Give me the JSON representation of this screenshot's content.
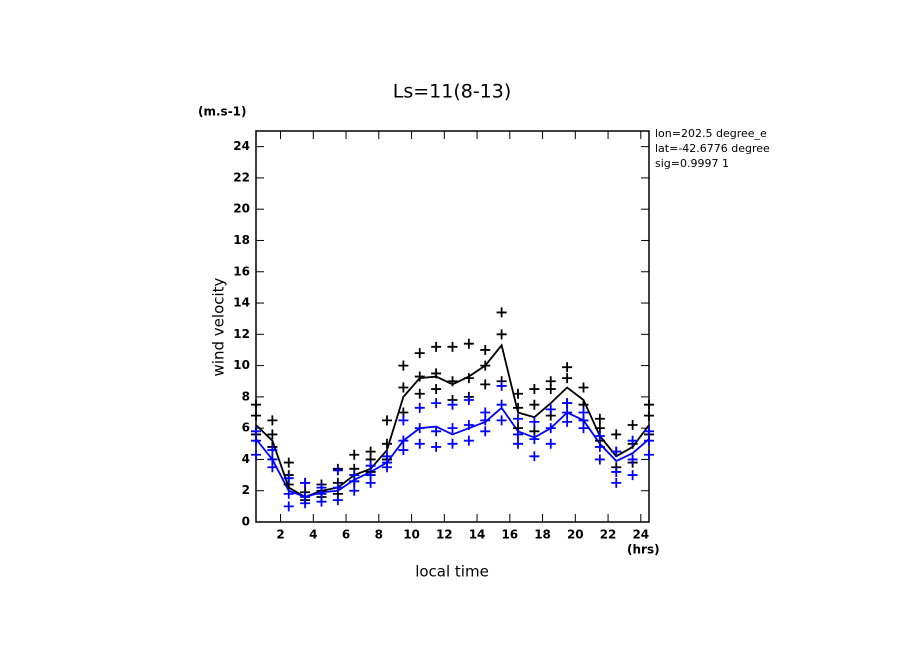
{
  "chart_data": {
    "type": "line",
    "title": "Ls=11(8-13)",
    "y_unit": "(m.s-1)",
    "ylabel": "wind velocity",
    "xlabel": "local time",
    "x_unit": "(hrs)",
    "annotations": [
      "lon=202.5 degree_e",
      "lat=-42.6776 degree",
      "sig=0.9997 1"
    ],
    "x": [
      0.5,
      1.5,
      2.5,
      3.5,
      4.5,
      5.5,
      6.5,
      7.5,
      8.5,
      9.5,
      10.5,
      11.5,
      12.5,
      13.5,
      14.5,
      15.5,
      16.5,
      17.5,
      18.5,
      19.5,
      20.5,
      21.5,
      22.5,
      23.5,
      24.5
    ],
    "xlim": [
      0.5,
      24.5
    ],
    "xticks": [
      2,
      4,
      6,
      8,
      10,
      12,
      14,
      16,
      18,
      20,
      22,
      24
    ],
    "ylim": [
      0,
      25
    ],
    "yticks": [
      0,
      2,
      4,
      6,
      8,
      10,
      12,
      14,
      16,
      18,
      20,
      22,
      24
    ],
    "series": [
      {
        "color": "#000000",
        "marker": "line",
        "values": [
          6.2,
          5.2,
          2.2,
          1.6,
          2.0,
          2.2,
          3.0,
          3.4,
          4.6,
          8.0,
          9.2,
          9.3,
          8.8,
          9.3,
          10.0,
          11.3,
          7.0,
          6.7,
          7.6,
          8.6,
          7.8,
          5.5,
          4.2,
          4.8,
          6.2
        ]
      },
      {
        "color": "#0000ff",
        "marker": "line",
        "values": [
          5.3,
          4.0,
          2.0,
          1.6,
          1.9,
          2.0,
          2.7,
          3.2,
          3.8,
          5.2,
          6.0,
          6.1,
          5.6,
          6.0,
          6.4,
          7.3,
          5.8,
          5.4,
          6.0,
          7.0,
          6.5,
          5.0,
          3.9,
          4.4,
          5.3
        ]
      },
      {
        "color": "#000000",
        "marker": "plus",
        "values": [
          7.5,
          6.5,
          3.8,
          2.5,
          2.4,
          3.4,
          4.3,
          4.5,
          6.5,
          10.0,
          10.8,
          11.2,
          11.2,
          11.4,
          11.0,
          13.4,
          8.2,
          8.5,
          9.0,
          9.9,
          8.6,
          6.6,
          5.6,
          6.2,
          7.5
        ]
      },
      {
        "color": "#000000",
        "marker": "plus",
        "values": [
          6.8,
          5.6,
          3.0,
          1.9,
          2.0,
          2.5,
          3.4,
          4.0,
          5.0,
          8.6,
          9.3,
          9.5,
          9.0,
          9.2,
          10.0,
          12.0,
          7.3,
          7.5,
          8.5,
          9.2,
          7.5,
          6.0,
          4.5,
          5.0,
          6.8
        ]
      },
      {
        "color": "#000000",
        "marker": "plus",
        "values": [
          5.6,
          4.8,
          2.4,
          1.4,
          1.6,
          1.8,
          2.6,
          3.2,
          4.0,
          7.0,
          8.2,
          8.5,
          7.8,
          8.0,
          8.8,
          9.0,
          6.0,
          5.8,
          6.8,
          7.6,
          6.5,
          5.2,
          3.5,
          3.8,
          5.6
        ]
      },
      {
        "color": "#0000ff",
        "marker": "plus",
        "values": [
          5.8,
          4.6,
          2.8,
          2.5,
          2.2,
          3.3,
          3.0,
          3.6,
          4.2,
          6.5,
          7.3,
          7.6,
          7.5,
          7.8,
          7.0,
          8.7,
          6.6,
          6.4,
          7.2,
          7.6,
          7.0,
          5.5,
          4.5,
          5.2,
          5.8
        ]
      },
      {
        "color": "#0000ff",
        "marker": "plus",
        "values": [
          5.2,
          4.0,
          1.8,
          1.6,
          1.8,
          2.2,
          2.6,
          3.0,
          3.8,
          5.2,
          6.0,
          5.8,
          6.0,
          6.2,
          6.5,
          7.5,
          5.6,
          5.3,
          6.0,
          7.0,
          6.5,
          4.8,
          3.2,
          4.0,
          5.2
        ]
      },
      {
        "color": "#0000ff",
        "marker": "plus",
        "values": [
          4.3,
          3.5,
          1.0,
          1.2,
          1.3,
          1.4,
          2.0,
          2.5,
          3.5,
          4.6,
          5.0,
          4.8,
          5.0,
          5.2,
          5.8,
          6.5,
          5.0,
          4.2,
          5.0,
          6.4,
          6.0,
          4.0,
          2.5,
          3.0,
          4.3
        ]
      }
    ]
  }
}
